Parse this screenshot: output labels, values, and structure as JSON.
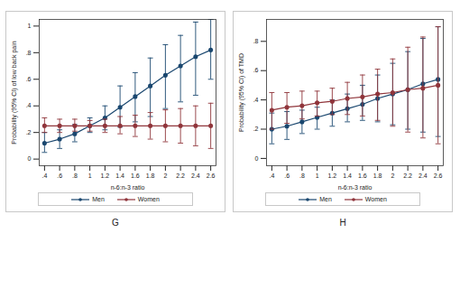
{
  "chart_data": [
    {
      "type": "line",
      "title": "G",
      "x_label": "n-6:n-3 ratio",
      "y_label": "Probability (95% CI) of low back pain",
      "x": [
        0.4,
        0.6,
        0.8,
        1,
        1.2,
        1.4,
        1.6,
        1.8,
        2,
        2.2,
        2.4,
        2.6
      ],
      "xlim": [
        0.33,
        2.67
      ],
      "xticks": [
        {
          "value": 0.4,
          "label": ".4"
        },
        {
          "value": 0.6,
          "label": ".6"
        },
        {
          "value": 0.8,
          "label": ".8"
        },
        1,
        1.2,
        1.4,
        1.6,
        1.8,
        2,
        2.2,
        2.4,
        2.6
      ],
      "ylim": [
        -0.05,
        1.05
      ],
      "yticks": [
        0,
        {
          "value": 0.2,
          "label": ".2"
        },
        {
          "value": 0.4,
          "label": ".4"
        },
        {
          "value": 0.6,
          "label": ".6"
        },
        {
          "value": 0.8,
          "label": ".8"
        },
        1
      ],
      "grid": false,
      "legend": "bottom",
      "marker": "circle",
      "series": [
        {
          "name": "Men",
          "color": "#1a476f",
          "values": [
            0.12,
            0.15,
            0.19,
            0.25,
            0.31,
            0.39,
            0.47,
            0.55,
            0.63,
            0.7,
            0.77,
            0.82
          ],
          "ci_lower": [
            0.05,
            0.08,
            0.13,
            0.2,
            0.22,
            0.24,
            0.28,
            0.32,
            0.38,
            0.43,
            0.48,
            0.6
          ],
          "ci_upper": [
            0.2,
            0.22,
            0.26,
            0.31,
            0.4,
            0.55,
            0.65,
            0.76,
            0.86,
            0.93,
            1.03,
            1.05
          ]
        },
        {
          "name": "Women",
          "color": "#90353b",
          "values": [
            0.25,
            0.25,
            0.25,
            0.25,
            0.25,
            0.25,
            0.25,
            0.25,
            0.25,
            0.25,
            0.25,
            0.25
          ],
          "ci_lower": [
            0.2,
            0.2,
            0.21,
            0.21,
            0.2,
            0.19,
            0.17,
            0.15,
            0.13,
            0.12,
            0.1,
            0.08
          ],
          "ci_upper": [
            0.31,
            0.3,
            0.3,
            0.29,
            0.3,
            0.32,
            0.33,
            0.35,
            0.37,
            0.38,
            0.4,
            0.42
          ]
        }
      ]
    },
    {
      "type": "line",
      "title": "H",
      "x_label": "n-6:n-3 ratio",
      "y_label": "Probability (95% CI) of TMD",
      "x": [
        0.4,
        0.6,
        0.8,
        1,
        1.2,
        1.4,
        1.6,
        1.8,
        2,
        2.2,
        2.4,
        2.6
      ],
      "xlim": [
        0.33,
        2.67
      ],
      "xticks": [
        {
          "value": 0.4,
          "label": ".4"
        },
        {
          "value": 0.6,
          "label": ".6"
        },
        {
          "value": 0.8,
          "label": ".8"
        },
        1,
        1.2,
        1.4,
        1.6,
        1.8,
        2,
        2.2,
        2.4,
        2.6
      ],
      "ylim": [
        -0.05,
        0.95
      ],
      "yticks": [
        0,
        {
          "value": 0.2,
          "label": ".2"
        },
        {
          "value": 0.4,
          "label": ".4"
        },
        {
          "value": 0.6,
          "label": ".6"
        },
        {
          "value": 0.8,
          "label": ".8"
        }
      ],
      "grid": false,
      "legend": "bottom",
      "marker": "circle",
      "series": [
        {
          "name": "Men",
          "color": "#1a476f",
          "values": [
            0.2,
            0.22,
            0.25,
            0.28,
            0.31,
            0.34,
            0.37,
            0.41,
            0.44,
            0.47,
            0.51,
            0.54
          ],
          "ci_lower": [
            0.1,
            0.13,
            0.17,
            0.2,
            0.22,
            0.25,
            0.26,
            0.25,
            0.23,
            0.2,
            0.18,
            0.15
          ],
          "ci_upper": [
            0.31,
            0.32,
            0.33,
            0.35,
            0.4,
            0.44,
            0.5,
            0.57,
            0.65,
            0.73,
            0.82,
            0.9
          ]
        },
        {
          "name": "Women",
          "color": "#90353b",
          "values": [
            0.33,
            0.35,
            0.36,
            0.38,
            0.39,
            0.41,
            0.42,
            0.44,
            0.45,
            0.47,
            0.48,
            0.5
          ],
          "ci_lower": [
            0.2,
            0.24,
            0.27,
            0.29,
            0.3,
            0.3,
            0.29,
            0.26,
            0.22,
            0.18,
            0.14,
            0.1
          ],
          "ci_upper": [
            0.45,
            0.45,
            0.46,
            0.46,
            0.48,
            0.52,
            0.57,
            0.61,
            0.68,
            0.76,
            0.83,
            0.9
          ]
        }
      ]
    }
  ]
}
